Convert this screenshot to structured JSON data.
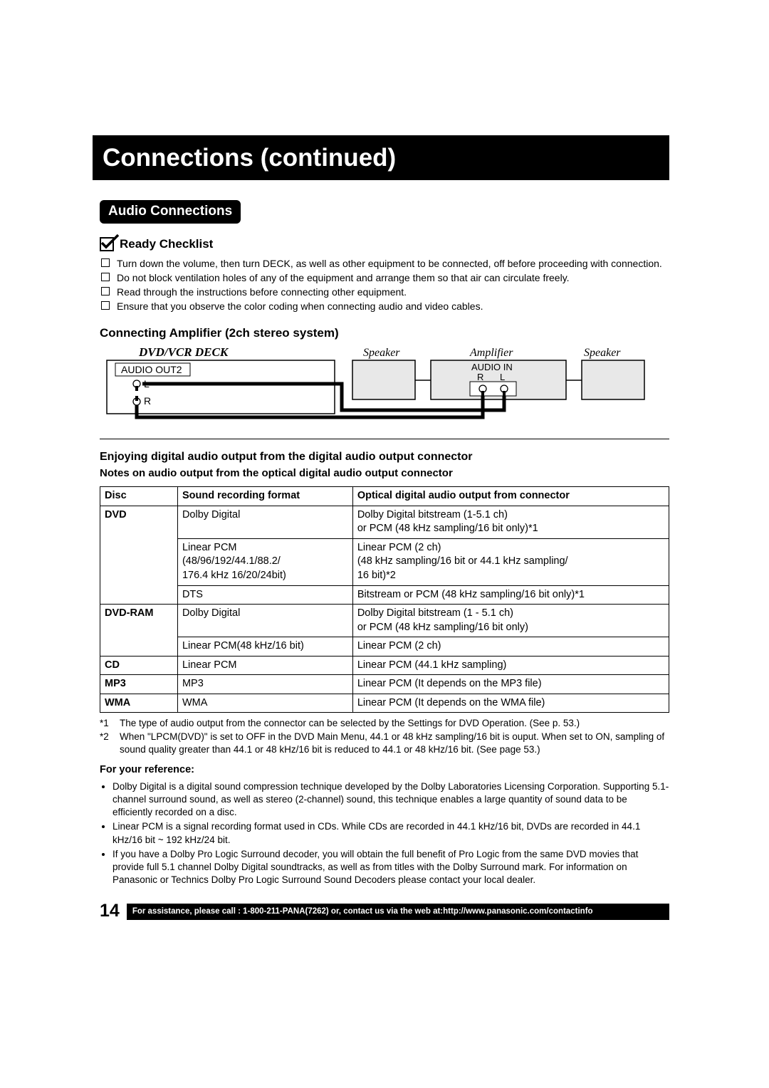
{
  "page": {
    "title": "Connections (continued)",
    "section_pill": "Audio Connections",
    "page_number": "14",
    "assistance": "For assistance, please call : 1-800-211-PANA(7262) or, contact us via the web at:http://www.panasonic.com/contactinfo"
  },
  "checklist": {
    "heading": "Ready Checklist",
    "items": [
      "Turn down the volume, then turn DECK, as well as other equipment to be connected, off before proceeding with connection.",
      "Do not block ventilation holes of any of the equipment and arrange them so that air can circulate freely.",
      "Read through the instructions before connecting other equipment.",
      "Ensure that you observe the color coding when connecting audio and video cables."
    ]
  },
  "amp_diagram": {
    "heading": "Connecting Amplifier (2ch stereo system)",
    "deck_label": "DVD/VCR DECK",
    "speaker_label": "Speaker",
    "amplifier_label": "Amplifier",
    "audio_out": "AUDIO OUT2",
    "audio_in": "AUDIO IN",
    "l": "L",
    "r": "R",
    "colors": {
      "box_stroke": "#000000",
      "box_fill": "#ffffff",
      "wire": "#000000"
    }
  },
  "digital_audio": {
    "title": "Enjoying digital audio output from the digital audio output connector",
    "subtitle": "Notes on audio output from the optical digital audio output connector",
    "columns": [
      "Disc",
      "Sound recording format",
      "Optical digital audio output from connector"
    ],
    "rows": [
      {
        "disc": "DVD",
        "rowspan": 3,
        "format": "Dolby Digital",
        "output": "Dolby Digital bitstream (1-5.1 ch)\nor PCM (48 kHz sampling/16 bit only)*1"
      },
      {
        "disc": "",
        "format": "Linear PCM\n(48/96/192/44.1/88.2/\n176.4 kHz 16/20/24bit)",
        "output": "Linear PCM (2 ch)\n(48 kHz sampling/16 bit or 44.1 kHz sampling/\n16 bit)*2"
      },
      {
        "disc": "",
        "format": "DTS",
        "output": "Bitstream or PCM (48 kHz sampling/16 bit only)*1"
      },
      {
        "disc": "DVD-RAM",
        "rowspan": 2,
        "format": "Dolby Digital",
        "output": "Dolby Digital bitstream (1 - 5.1 ch)\nor PCM (48 kHz sampling/16 bit only)"
      },
      {
        "disc": "",
        "format": "Linear PCM(48 kHz/16 bit)",
        "output": "Linear PCM (2 ch)"
      },
      {
        "disc": "CD",
        "rowspan": 1,
        "format": "Linear PCM",
        "output": "Linear PCM (44.1 kHz sampling)"
      },
      {
        "disc": "MP3",
        "rowspan": 1,
        "format": "MP3",
        "output": "Linear PCM (It depends on the MP3 file)"
      },
      {
        "disc": "WMA",
        "rowspan": 1,
        "format": "WMA",
        "output": "Linear PCM (It depends on the WMA file)"
      }
    ],
    "notes": [
      {
        "ref": "*1",
        "text": "The type of audio output from the connector can be selected by the Settings for DVD Operation. (See p. 53.)"
      },
      {
        "ref": "*2",
        "text": "When \"LPCM(DVD)\" is set to OFF in the DVD Main Menu, 44.1 or 48 kHz sampling/16 bit is ouput. When set to ON, sampling of sound quality greater than 44.1 or 48 kHz/16 bit is reduced to 44.1 or 48 kHz/16 bit. (See page 53.)"
      }
    ],
    "reference_heading": "For your reference:",
    "reference_bullets": [
      "Dolby Digital is a digital sound compression technique developed by the Dolby Laboratories Licensing Corporation. Supporting 5.1-channel surround sound, as well as stereo (2-channel) sound, this technique enables a large quantity of sound data to be efficiently recorded on a disc.",
      "Linear PCM is a signal recording format used in CDs. While CDs are recorded in 44.1 kHz/16 bit, DVDs are recorded in 44.1 kHz/16 bit ~ 192 kHz/24 bit.",
      "If you have a Dolby Pro Logic Surround decoder, you will obtain the full benefit of Pro Logic from the same DVD movies that provide full 5.1 channel Dolby Digital soundtracks, as well as from titles with the Dolby Surround mark. For information on Panasonic or Technics Dolby Pro Logic Surround Sound Decoders please contact your local dealer."
    ]
  }
}
